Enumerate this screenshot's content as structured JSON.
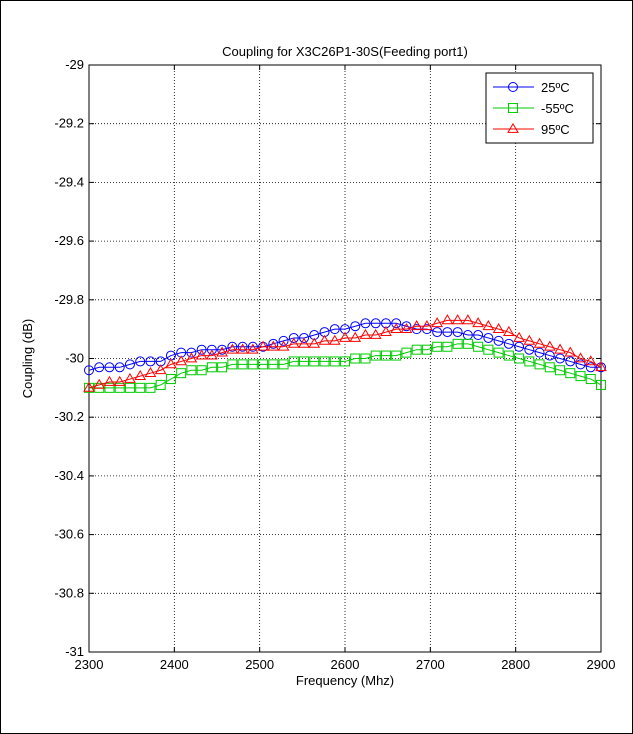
{
  "chart_data": {
    "type": "line",
    "title": "Coupling for X3C26P1-30S(Feeding port1)",
    "xlabel": "Frequency (Mhz)",
    "ylabel": "Coupling (dB)",
    "xlim": [
      2300,
      2900
    ],
    "ylim": [
      -31,
      -29
    ],
    "xticks": [
      2300,
      2400,
      2500,
      2600,
      2700,
      2800,
      2900
    ],
    "yticks": [
      -29,
      -29.2,
      -29.4,
      -29.6,
      -29.8,
      -30,
      -30.2,
      -30.4,
      -30.6,
      -30.8,
      -31
    ],
    "xtick_labels": [
      "2300",
      "2400",
      "2500",
      "2600",
      "2700",
      "2800",
      "2900"
    ],
    "ytick_labels": [
      "-29",
      "-29.2",
      "-29.4",
      "-29.6",
      "-29.8",
      "-30",
      "-30.2",
      "-30.4",
      "-30.6",
      "-30.8",
      "-31"
    ],
    "grid": true,
    "legend_position": "top-right",
    "series": [
      {
        "name": "25ºC",
        "color": "#0000ff",
        "marker": "circle",
        "x": [
          2300,
          2312,
          2324,
          2336,
          2348,
          2360,
          2372,
          2384,
          2396,
          2408,
          2420,
          2432,
          2444,
          2456,
          2468,
          2480,
          2492,
          2504,
          2516,
          2528,
          2540,
          2552,
          2564,
          2576,
          2588,
          2600,
          2612,
          2624,
          2636,
          2648,
          2660,
          2672,
          2684,
          2696,
          2708,
          2720,
          2732,
          2744,
          2756,
          2768,
          2780,
          2792,
          2804,
          2816,
          2828,
          2840,
          2852,
          2864,
          2876,
          2888,
          2900
        ],
        "values": [
          -30.04,
          -30.03,
          -30.03,
          -30.03,
          -30.02,
          -30.01,
          -30.01,
          -30.01,
          -29.99,
          -29.98,
          -29.98,
          -29.97,
          -29.97,
          -29.97,
          -29.96,
          -29.96,
          -29.96,
          -29.96,
          -29.95,
          -29.94,
          -29.93,
          -29.93,
          -29.92,
          -29.91,
          -29.9,
          -29.9,
          -29.89,
          -29.88,
          -29.88,
          -29.88,
          -29.88,
          -29.89,
          -29.9,
          -29.9,
          -29.91,
          -29.91,
          -29.91,
          -29.92,
          -29.92,
          -29.93,
          -29.94,
          -29.95,
          -29.96,
          -29.97,
          -29.98,
          -29.99,
          -30.0,
          -30.01,
          -30.02,
          -30.03,
          -30.03
        ]
      },
      {
        "name": "-55ºC",
        "color": "#00cc00",
        "marker": "square",
        "x": [
          2300,
          2312,
          2324,
          2336,
          2348,
          2360,
          2372,
          2384,
          2396,
          2408,
          2420,
          2432,
          2444,
          2456,
          2468,
          2480,
          2492,
          2504,
          2516,
          2528,
          2540,
          2552,
          2564,
          2576,
          2588,
          2600,
          2612,
          2624,
          2636,
          2648,
          2660,
          2672,
          2684,
          2696,
          2708,
          2720,
          2732,
          2744,
          2756,
          2768,
          2780,
          2792,
          2804,
          2816,
          2828,
          2840,
          2852,
          2864,
          2876,
          2888,
          2900
        ],
        "values": [
          -30.1,
          -30.1,
          -30.1,
          -30.1,
          -30.1,
          -30.1,
          -30.1,
          -30.09,
          -30.07,
          -30.05,
          -30.04,
          -30.04,
          -30.03,
          -30.03,
          -30.02,
          -30.02,
          -30.02,
          -30.02,
          -30.02,
          -30.02,
          -30.01,
          -30.01,
          -30.01,
          -30.01,
          -30.01,
          -30.01,
          -30.0,
          -30.0,
          -29.99,
          -29.99,
          -29.99,
          -29.98,
          -29.97,
          -29.97,
          -29.96,
          -29.96,
          -29.95,
          -29.95,
          -29.96,
          -29.97,
          -29.98,
          -29.99,
          -30.0,
          -30.01,
          -30.02,
          -30.03,
          -30.04,
          -30.05,
          -30.06,
          -30.07,
          -30.09
        ]
      },
      {
        "name": "95ºC",
        "color": "#ff0000",
        "marker": "triangle",
        "x": [
          2300,
          2312,
          2324,
          2336,
          2348,
          2360,
          2372,
          2384,
          2396,
          2408,
          2420,
          2432,
          2444,
          2456,
          2468,
          2480,
          2492,
          2504,
          2516,
          2528,
          2540,
          2552,
          2564,
          2576,
          2588,
          2600,
          2612,
          2624,
          2636,
          2648,
          2660,
          2672,
          2684,
          2696,
          2708,
          2720,
          2732,
          2744,
          2756,
          2768,
          2780,
          2792,
          2804,
          2816,
          2828,
          2840,
          2852,
          2864,
          2876,
          2888,
          2900
        ],
        "values": [
          -30.1,
          -30.09,
          -30.08,
          -30.08,
          -30.07,
          -30.06,
          -30.05,
          -30.04,
          -30.02,
          -30.01,
          -30.0,
          -29.99,
          -29.99,
          -29.98,
          -29.97,
          -29.97,
          -29.97,
          -29.96,
          -29.96,
          -29.96,
          -29.95,
          -29.95,
          -29.95,
          -29.94,
          -29.94,
          -29.93,
          -29.93,
          -29.92,
          -29.92,
          -29.91,
          -29.9,
          -29.9,
          -29.89,
          -29.89,
          -29.88,
          -29.87,
          -29.87,
          -29.87,
          -29.88,
          -29.89,
          -29.9,
          -29.91,
          -29.93,
          -29.94,
          -29.95,
          -29.96,
          -29.97,
          -29.98,
          -30.0,
          -30.01,
          -30.03
        ]
      }
    ]
  }
}
